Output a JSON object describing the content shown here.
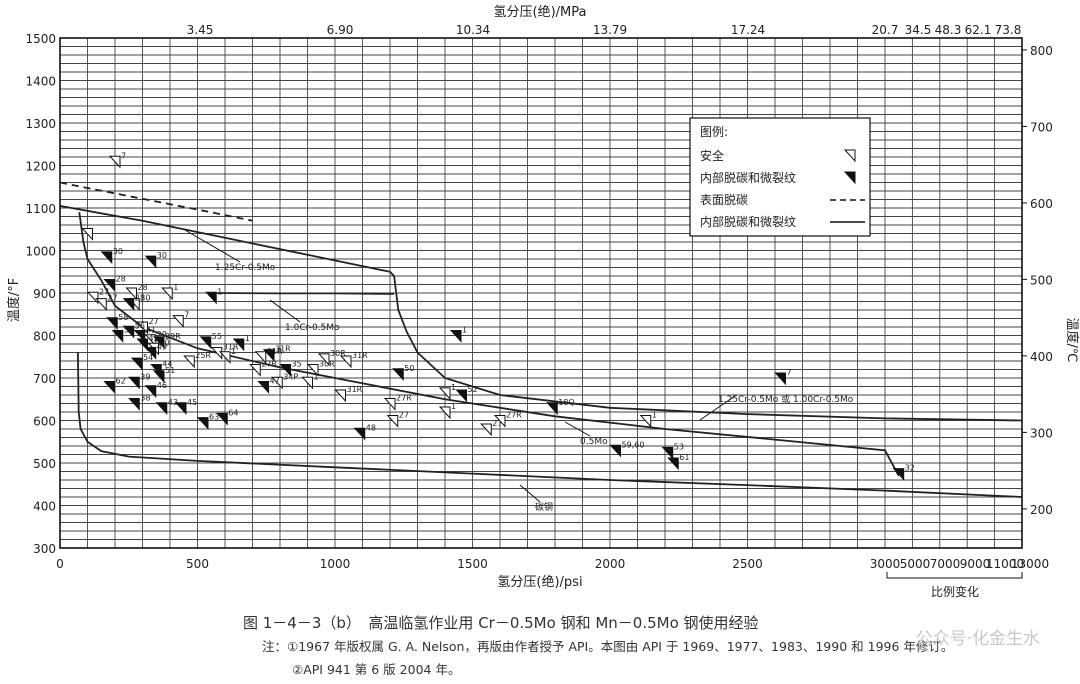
{
  "chart_data": {
    "type": "line",
    "title": "",
    "xlabel": "氢分压(绝)/psi",
    "x2label": "氢分压(绝)/MPa",
    "ylabel": "温度/°F",
    "y2label": "温度/℃",
    "xlim": [
      0,
      3500
    ],
    "ylim": [
      300,
      1500
    ],
    "x_ticks": [
      0,
      500,
      1000,
      1500,
      2000,
      2500,
      3000
    ],
    "x_ticks_tail": [
      "5000",
      "7000",
      "9000",
      "11000",
      "13000"
    ],
    "x_tail_label": "比例变化",
    "x2_ticks": [
      "3.45",
      "6.90",
      "10.34",
      "13.79",
      "17.24",
      "20.7",
      "34.5",
      "48.3",
      "62.1",
      "73.8"
    ],
    "y_ticks": [
      300,
      400,
      500,
      600,
      700,
      800,
      900,
      1000,
      1100,
      1200,
      1300,
      1400,
      1500
    ],
    "y2_ticks": [
      "200",
      "300",
      "400",
      "500",
      "600",
      "700",
      "800"
    ],
    "grid": true,
    "legend": {
      "title": "图例:",
      "placement": "top-right",
      "entries": [
        "安全",
        "内部脱碳和微裂纹",
        "表面脱碳",
        "内部脱碳和微裂纹"
      ]
    },
    "curve_labels": [
      "1.25Cr-0.5Mo",
      "1.0Cr-0.5Mo",
      "1.25Cr-0.5Mo 或 1.00Cr-0.5Mo",
      "0.5Mo",
      "碳钢"
    ],
    "series": [
      {
        "name": "表面脱碳",
        "style": "dashed",
        "x": [
          0,
          100,
          250,
          400,
          550,
          700
        ],
        "y": [
          1160,
          1147,
          1128,
          1109,
          1090,
          1070
        ]
      },
      {
        "name": "1.25Cr-0.5Mo",
        "style": "solid",
        "x": [
          0,
          300,
          600,
          900,
          1200,
          1215,
          1230,
          1260,
          1300,
          1400,
          1600,
          2000,
          2500,
          3000,
          3500
        ],
        "y": [
          1105,
          1070,
          1030,
          990,
          950,
          940,
          860,
          810,
          760,
          700,
          660,
          630,
          615,
          605,
          600
        ]
      },
      {
        "name": "1.0Cr-0.5Mo",
        "style": "solid",
        "x": [
          570,
          800,
          1000,
          1215
        ],
        "y": [
          900,
          899,
          899,
          898
        ]
      },
      {
        "name": "0.5Mo",
        "style": "solid",
        "x": [
          70,
          85,
          100,
          150,
          200,
          300,
          500,
          800,
          1000,
          1400,
          1800,
          2200,
          2600,
          3000,
          3050
        ],
        "y": [
          1090,
          1020,
          980,
          930,
          870,
          820,
          770,
          725,
          700,
          650,
          610,
          580,
          555,
          530,
          470
        ]
      },
      {
        "name": "碳钢",
        "style": "solid",
        "x": [
          65,
          68,
          75,
          100,
          150,
          250,
          500,
          1000,
          1500,
          2000,
          2500,
          3000,
          3500
        ],
        "y": [
          760,
          620,
          580,
          550,
          528,
          515,
          505,
          490,
          475,
          460,
          448,
          435,
          420
        ]
      }
    ],
    "points_safe": [
      {
        "x": 200,
        "y": 1210,
        "label": "7"
      },
      {
        "x": 100,
        "y": 1040,
        "label": ""
      },
      {
        "x": 120,
        "y": 890,
        "label": "27"
      },
      {
        "x": 150,
        "y": 875,
        "label": "27"
      },
      {
        "x": 260,
        "y": 900,
        "label": "28"
      },
      {
        "x": 270,
        "y": 875,
        "label": "30"
      },
      {
        "x": 390,
        "y": 900,
        "label": "1"
      },
      {
        "x": 430,
        "y": 835,
        "label": "7"
      },
      {
        "x": 300,
        "y": 820,
        "label": "27"
      },
      {
        "x": 330,
        "y": 790,
        "label": "29"
      },
      {
        "x": 340,
        "y": 770,
        "label": "40"
      },
      {
        "x": 570,
        "y": 760,
        "label": "31R"
      },
      {
        "x": 470,
        "y": 740,
        "label": "25R"
      },
      {
        "x": 600,
        "y": 750,
        "label": "1"
      },
      {
        "x": 730,
        "y": 750,
        "label": "31R"
      },
      {
        "x": 710,
        "y": 720,
        "label": "27R"
      },
      {
        "x": 920,
        "y": 720,
        "label": "30R"
      },
      {
        "x": 960,
        "y": 745,
        "label": "30R"
      },
      {
        "x": 1040,
        "y": 740,
        "label": "31R"
      },
      {
        "x": 790,
        "y": 690,
        "label": "34P"
      },
      {
        "x": 900,
        "y": 690,
        "label": "1"
      },
      {
        "x": 1020,
        "y": 660,
        "label": "31R"
      },
      {
        "x": 1200,
        "y": 640,
        "label": "27R"
      },
      {
        "x": 1210,
        "y": 600,
        "label": "27"
      },
      {
        "x": 1400,
        "y": 665,
        "label": "1"
      },
      {
        "x": 1400,
        "y": 620,
        "label": "1"
      },
      {
        "x": 1550,
        "y": 580,
        "label": "27"
      },
      {
        "x": 1600,
        "y": 600,
        "label": "27R"
      },
      {
        "x": 2130,
        "y": 600,
        "label": "1"
      }
    ],
    "points_crack": [
      {
        "x": 170,
        "y": 985,
        "label": "30"
      },
      {
        "x": 330,
        "y": 975,
        "label": "30"
      },
      {
        "x": 550,
        "y": 890,
        "label": "1"
      },
      {
        "x": 180,
        "y": 920,
        "label": "28"
      },
      {
        "x": 250,
        "y": 875,
        "label": "28"
      },
      {
        "x": 190,
        "y": 830,
        "label": "58"
      },
      {
        "x": 210,
        "y": 800,
        "label": "55"
      },
      {
        "x": 250,
        "y": 810,
        "label": "56"
      },
      {
        "x": 290,
        "y": 800,
        "label": "41"
      },
      {
        "x": 300,
        "y": 780,
        "label": "42"
      },
      {
        "x": 360,
        "y": 785,
        "label": "29R"
      },
      {
        "x": 330,
        "y": 760,
        "label": "49"
      },
      {
        "x": 530,
        "y": 785,
        "label": "55"
      },
      {
        "x": 650,
        "y": 780,
        "label": "1"
      },
      {
        "x": 760,
        "y": 755,
        "label": "31R"
      },
      {
        "x": 820,
        "y": 720,
        "label": "35"
      },
      {
        "x": 280,
        "y": 735,
        "label": "54"
      },
      {
        "x": 350,
        "y": 720,
        "label": "44"
      },
      {
        "x": 360,
        "y": 705,
        "label": "51"
      },
      {
        "x": 270,
        "y": 690,
        "label": "39"
      },
      {
        "x": 180,
        "y": 680,
        "label": "62"
      },
      {
        "x": 330,
        "y": 670,
        "label": "46"
      },
      {
        "x": 740,
        "y": 680,
        "label": "47"
      },
      {
        "x": 270,
        "y": 640,
        "label": "38"
      },
      {
        "x": 370,
        "y": 630,
        "label": "43"
      },
      {
        "x": 440,
        "y": 630,
        "label": "45"
      },
      {
        "x": 590,
        "y": 605,
        "label": "64"
      },
      {
        "x": 520,
        "y": 595,
        "label": "63"
      },
      {
        "x": 1090,
        "y": 570,
        "label": "48"
      },
      {
        "x": 1230,
        "y": 710,
        "label": "50"
      },
      {
        "x": 1440,
        "y": 800,
        "label": "1"
      },
      {
        "x": 1460,
        "y": 660,
        "label": "52"
      },
      {
        "x": 1790,
        "y": 630,
        "label": "18Q"
      },
      {
        "x": 2020,
        "y": 530,
        "label": "59,60"
      },
      {
        "x": 2210,
        "y": 525,
        "label": "53"
      },
      {
        "x": 2230,
        "y": 500,
        "label": "61"
      },
      {
        "x": 2620,
        "y": 700,
        "label": "7"
      },
      {
        "x": 3050,
        "y": 475,
        "label": "32"
      }
    ]
  },
  "caption": {
    "figure_title": "图 1－4－3（b）　高温临氢作业用 Cr－0.5Mo 钢和 Mn－0.5Mo 钢使用经验",
    "note1": "注：①1967 年版权属 G. A. Nelson，再版由作者授予 API。本图由 API 于 1969、1977、1983、1990 和 1996 年修订。",
    "note2": "②API 941 第 6 版 2004 年。"
  },
  "watermark": "公众号·化金生水"
}
